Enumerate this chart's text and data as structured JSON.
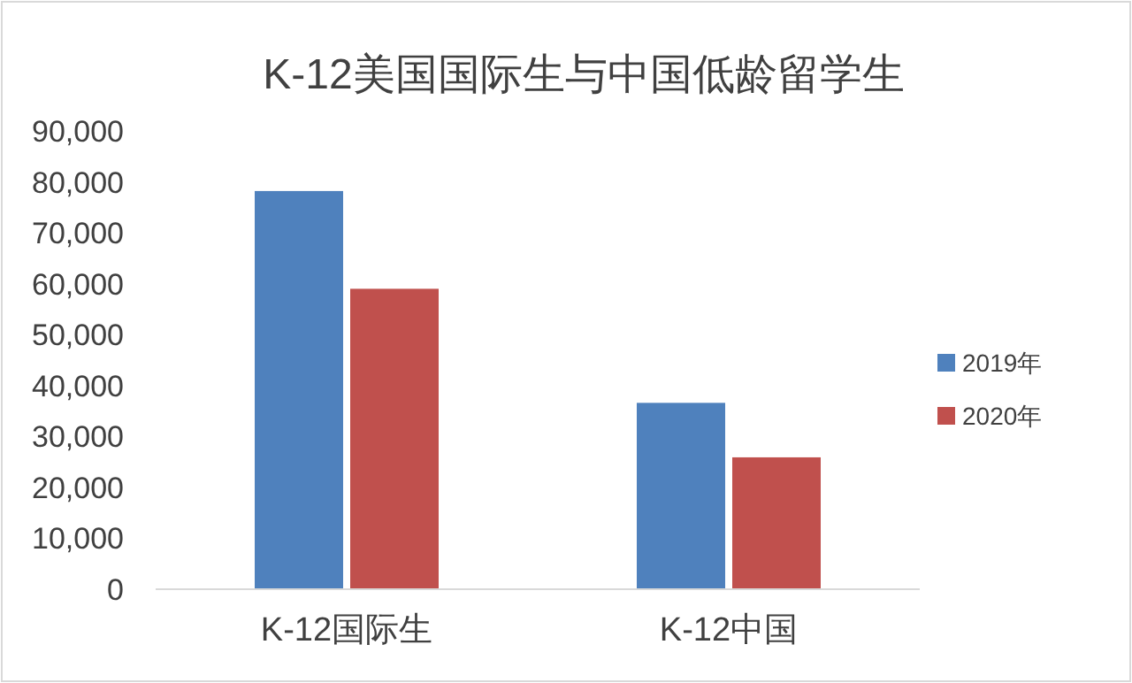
{
  "chart_data": {
    "type": "bar",
    "title": "K-12美国国际生与中国低龄留学生",
    "categories": [
      "K-12国际生",
      "K-12中国"
    ],
    "series": [
      {
        "name": "2019年",
        "color": "#4f81bd",
        "values": [
          78200,
          36600
        ]
      },
      {
        "name": "2020年",
        "color": "#c0504d",
        "values": [
          59000,
          25900
        ]
      }
    ],
    "ylim": [
      0,
      90000
    ],
    "yticks": [
      {
        "value": 0,
        "label": "0"
      },
      {
        "value": 10000,
        "label": "10,000"
      },
      {
        "value": 20000,
        "label": "20,000"
      },
      {
        "value": 30000,
        "label": "30,000"
      },
      {
        "value": 40000,
        "label": "40,000"
      },
      {
        "value": 50000,
        "label": "50,000"
      },
      {
        "value": 60000,
        "label": "60,000"
      },
      {
        "value": 70000,
        "label": "70,000"
      },
      {
        "value": 80000,
        "label": "80,000"
      },
      {
        "value": 90000,
        "label": "90,000"
      }
    ],
    "grid": false,
    "legend": "right"
  }
}
